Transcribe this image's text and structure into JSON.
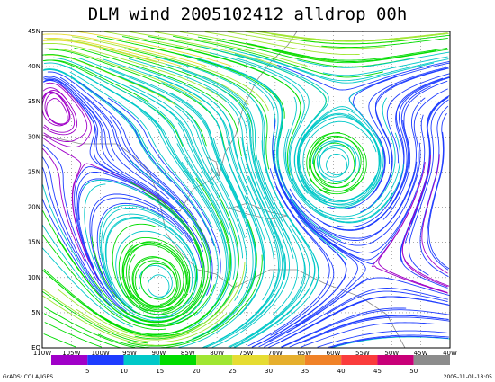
{
  "title": "DLM wind 2005102412 alldrop 00h",
  "x_axis": {
    "labels": [
      "110W",
      "105W",
      "100W",
      "95W",
      "90W",
      "85W",
      "80W",
      "75W",
      "70W",
      "65W",
      "60W",
      "55W",
      "50W",
      "45W",
      "40W"
    ]
  },
  "y_axis": {
    "labels": [
      "EQ",
      "5N",
      "10N",
      "15N",
      "20N",
      "25N",
      "30N",
      "35N",
      "40N",
      "45N"
    ]
  },
  "colorbar": {
    "labels": [
      "5",
      "10",
      "15",
      "20",
      "25",
      "30",
      "35",
      "40",
      "45",
      "50"
    ],
    "colors": [
      "#a000c8",
      "#1e3cff",
      "#00c8c8",
      "#00dc00",
      "#a0e632",
      "#e6dc32",
      "#e6af2d",
      "#f08228",
      "#fa3c3c",
      "#c80078",
      "#8c8c8c"
    ]
  },
  "credit": "GrADS: COLA/IGES",
  "timestamp": "2005-11-01-18:05"
}
